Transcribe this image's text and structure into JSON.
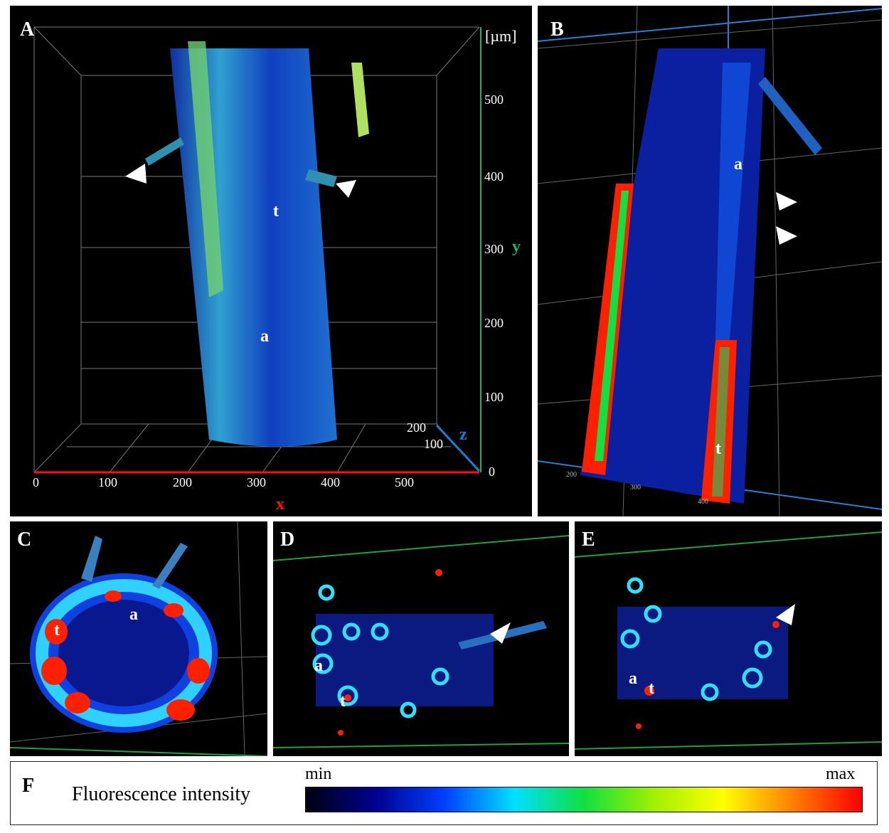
{
  "panels": {
    "A": {
      "label": "A",
      "unit": "[µm]",
      "x_axis_label": "x",
      "y_axis_label": "y",
      "z_axis_label": "z",
      "x_ticks": [
        "0",
        "100",
        "200",
        "300",
        "400",
        "500"
      ],
      "y_ticks": [
        "0",
        "100",
        "200",
        "300",
        "400",
        "500"
      ],
      "z_ticks": [
        "100",
        "200"
      ],
      "annotations": [
        "t",
        "a"
      ],
      "axis_colors": {
        "x": "#ff1010",
        "y": "#20b060",
        "z": "#1a7fd0"
      }
    },
    "B": {
      "label": "B",
      "annotations": [
        "a",
        "t"
      ],
      "x_ticks": [
        "200",
        "300",
        "400"
      ]
    },
    "C": {
      "label": "C",
      "annotations": [
        "t",
        "a"
      ]
    },
    "D": {
      "label": "D",
      "annotations": [
        "a",
        "t"
      ]
    },
    "E": {
      "label": "E",
      "annotations": [
        "a",
        "t"
      ]
    },
    "F": {
      "label": "F",
      "title": "Fluorescence intensity",
      "min": "min",
      "max": "max",
      "colormap": [
        "#000010",
        "#00008f",
        "#0040ff",
        "#00e0ff",
        "#10e040",
        "#a0f000",
        "#ffff00",
        "#ff8000",
        "#ff0000"
      ]
    }
  }
}
